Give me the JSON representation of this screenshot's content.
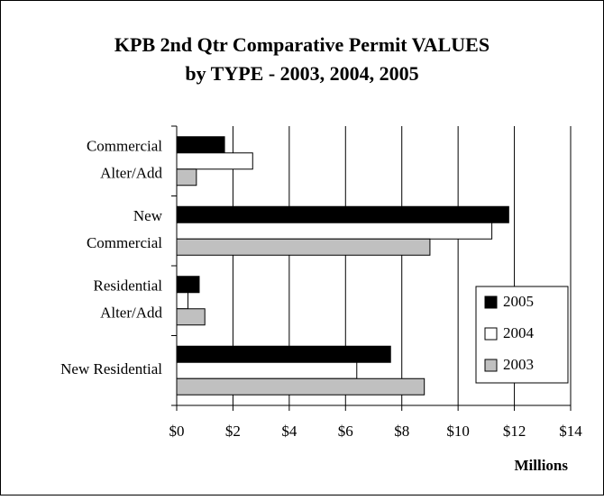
{
  "chart_data": {
    "type": "hbar",
    "title": [
      "KPB 2nd Qtr Comparative Permit VALUES",
      "by TYPE - 2003, 2004, 2005"
    ],
    "x_label": "Millions",
    "categories": [
      [
        "Commercial",
        "Alter/Add"
      ],
      [
        "New",
        "Commercial"
      ],
      [
        "Residential",
        "Alter/Add"
      ],
      [
        "New Residential"
      ]
    ],
    "series": [
      {
        "name": "2005",
        "color": "#000000",
        "values": [
          1.7,
          11.8,
          0.8,
          7.6
        ]
      },
      {
        "name": "2004",
        "color": "#ffffff",
        "values": [
          2.7,
          11.2,
          0.4,
          6.4
        ]
      },
      {
        "name": "2003",
        "color": "#c0c0c0",
        "values": [
          0.7,
          9.0,
          1.0,
          8.8
        ]
      }
    ],
    "xlim": [
      0,
      14
    ],
    "xticks": [
      {
        "value": 0,
        "label": "$0"
      },
      {
        "value": 2,
        "label": "$2"
      },
      {
        "value": 4,
        "label": "$4"
      },
      {
        "value": 6,
        "label": "$6"
      },
      {
        "value": 8,
        "label": "$8"
      },
      {
        "value": 10,
        "label": "$10"
      },
      {
        "value": 12,
        "label": "$12"
      },
      {
        "value": 14,
        "label": "$14"
      }
    ],
    "grid": true,
    "legend": "lower right"
  }
}
